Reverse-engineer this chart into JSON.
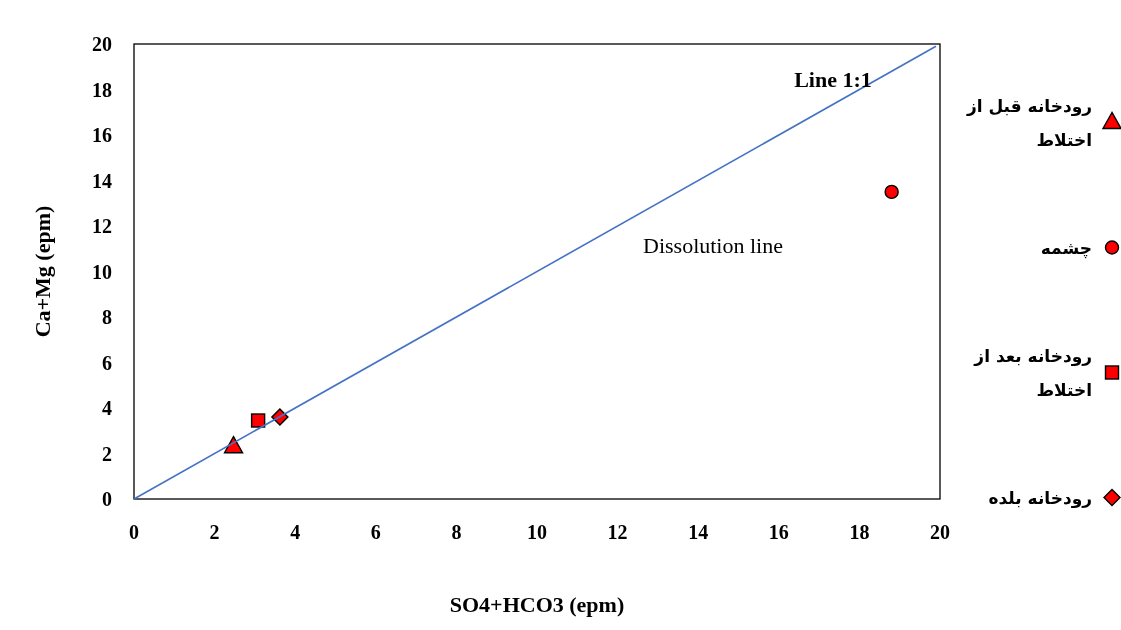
{
  "chart_data": {
    "type": "scatter",
    "xlabel": "SO4+HCO3 (epm)",
    "ylabel": "Ca+Mg (epm)",
    "xlim": [
      0,
      20
    ],
    "ylim": [
      0,
      20
    ],
    "xticks": [
      0,
      2,
      4,
      6,
      8,
      10,
      12,
      14,
      16,
      18,
      20
    ],
    "yticks": [
      0,
      2,
      4,
      6,
      8,
      10,
      12,
      14,
      16,
      18,
      20
    ],
    "legend": "right",
    "series": [
      {
        "name": "رودخانه قبل از اختلاط",
        "color": "#ff0000",
        "marker": "triangle",
        "x": [
          2.47
        ],
        "values": [
          2.3
        ]
      },
      {
        "name": "چشمه",
        "color": "#ff0000",
        "marker": "circle",
        "x": [
          18.8
        ],
        "values": [
          13.5
        ]
      },
      {
        "name": "رودخانه بعد از اختلاط",
        "color": "#ff0000",
        "marker": "square",
        "x": [
          3.08
        ],
        "values": [
          3.45
        ]
      },
      {
        "name": "رودخانه بلده",
        "color": "#ff0000",
        "marker": "diamond",
        "x": [
          3.62
        ],
        "values": [
          3.6
        ]
      },
      {
        "type": "line",
        "color": "#4472c4",
        "line_style": "solid",
        "marker": "none",
        "x": [
          0,
          19.9
        ],
        "values": [
          0,
          19.9
        ]
      }
    ],
    "annotations": [
      "**Line 1:1**",
      "Dissolution line"
    ]
  }
}
